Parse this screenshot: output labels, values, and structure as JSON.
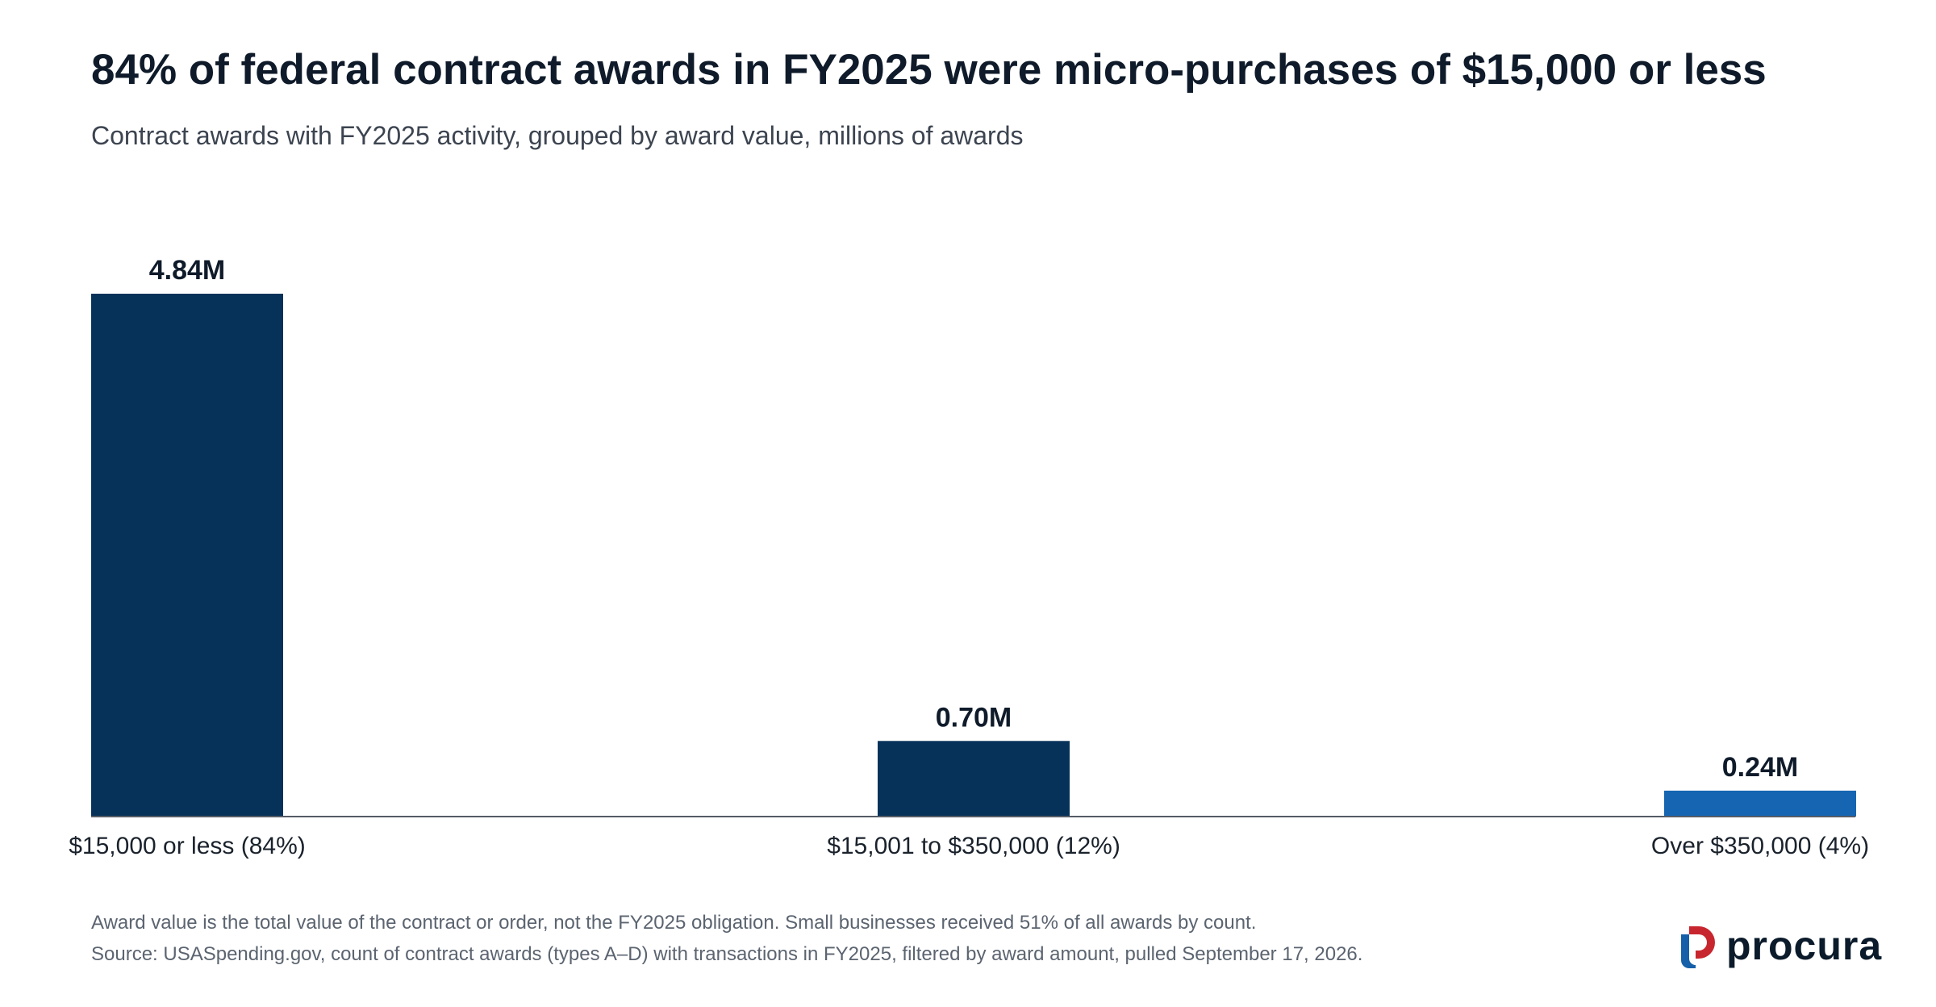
{
  "header": {
    "title": "84% of federal contract awards in FY2025 were micro-purchases of $15,000 or less",
    "subtitle": "Contract awards with FY2025 activity, grouped by award value, millions of awards"
  },
  "footer": {
    "note": "Award value is the total value of the contract or order, not the FY2025 obligation. Small businesses received 51% of all awards by count.",
    "source": "Source: USASpending.gov, count of contract awards (types A–D) with transactions in FY2025, filtered by award amount, pulled September 17, 2026."
  },
  "brand": {
    "name": "procura",
    "colors": {
      "mark_blue": "#1560a8",
      "mark_red": "#c8262e",
      "text": "#0b1b2b"
    }
  },
  "chart_data": {
    "type": "bar",
    "title": "84% of federal contract awards in FY2025 were micro-purchases of $15,000 or less",
    "subtitle": "Contract awards with FY2025 activity, grouped by award value, millions of awards",
    "categories": [
      "$15,000 or less (84%)",
      "$15,001 to $350,000 (12%)",
      "Over $350,000 (4%)"
    ],
    "values": [
      4.84,
      0.7,
      0.24
    ],
    "data_labels": [
      "4.84M",
      "0.70M",
      "0.24M"
    ],
    "colors": [
      "#06325a",
      "#06325a",
      "#1565b3"
    ],
    "ylim": [
      0,
      4.84
    ],
    "grid": false,
    "legend": "none",
    "xlabel": "",
    "ylabel": ""
  }
}
